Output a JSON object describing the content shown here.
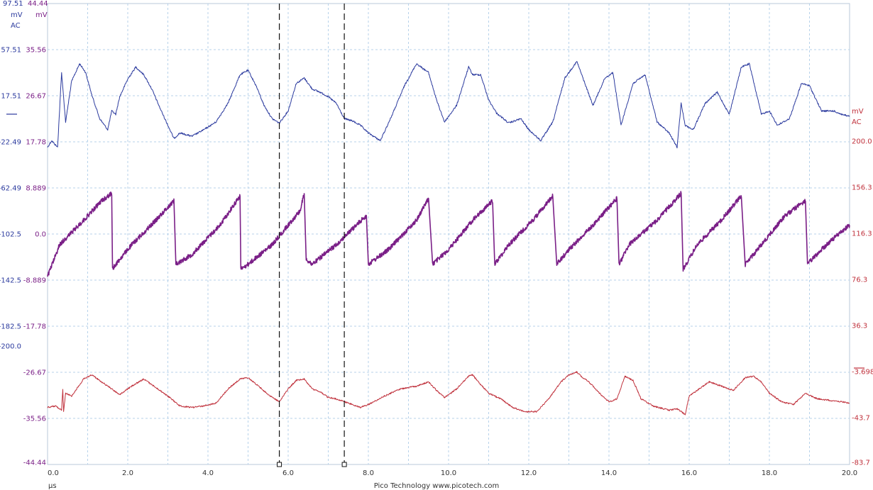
{
  "chart_data": {
    "type": "line",
    "footer": "Pico Technology   www.picotech.com",
    "x_unit": "µs",
    "xlim": [
      0,
      20
    ],
    "x_ticks": [
      "0.0",
      "2.0",
      "4.0",
      "6.0",
      "8.0",
      "10.0",
      "12.0",
      "14.0",
      "16.0",
      "18.0",
      "20.0"
    ],
    "grid": true,
    "cursors_us": [
      5.78,
      7.4
    ],
    "axes": {
      "blue": {
        "unit": "mV",
        "coupling": "AC",
        "ticks": [
          "97.51",
          "57.51",
          "17.51",
          "-22.49",
          "-62.49",
          "-102.5",
          "-142.5",
          "-182.5",
          "-200.0"
        ]
      },
      "purple": {
        "unit": "mV",
        "ticks": [
          "44.44",
          "35.56",
          "26.67",
          "17.78",
          "8.889",
          "0.0",
          "-8.889",
          "-17.78",
          "-26.67",
          "-35.56",
          "-44.44"
        ]
      },
      "red": {
        "unit": "mV",
        "coupling": "AC",
        "ticks": [
          "200.0",
          "156.3",
          "116.3",
          "76.3",
          "36.3",
          "-3.698",
          "-43.7",
          "-83.7"
        ]
      }
    },
    "series": [
      {
        "color": "#2b3a9e",
        "x": [
          0.0,
          0.1,
          0.25,
          0.35,
          0.45,
          0.6,
          0.8,
          0.95,
          1.1,
          1.3,
          1.5,
          1.6,
          1.7,
          1.8,
          2.0,
          2.2,
          2.4,
          2.6,
          2.8,
          3.0,
          3.15,
          3.3,
          3.6,
          3.9,
          4.2,
          4.5,
          4.8,
          5.0,
          5.2,
          5.4,
          5.6,
          5.78,
          6.0,
          6.2,
          6.4,
          6.6,
          6.8,
          7.0,
          7.2,
          7.4,
          7.6,
          7.8,
          8.0,
          8.3,
          8.6,
          8.9,
          9.2,
          9.5,
          9.7,
          9.9,
          10.2,
          10.5,
          10.6,
          10.8,
          11.0,
          11.2,
          11.5,
          11.8,
          12.0,
          12.3,
          12.6,
          12.9,
          13.2,
          13.3,
          13.6,
          13.9,
          14.1,
          14.3,
          14.6,
          14.9,
          15.2,
          15.5,
          15.7,
          15.8,
          15.9,
          16.1,
          16.4,
          16.7,
          17.0,
          17.3,
          17.5,
          17.8,
          18.0,
          18.2,
          18.5,
          18.8,
          19.0,
          19.3,
          19.6,
          19.8,
          20.0
        ],
        "y": [
          -28,
          -22,
          -28,
          40,
          -5,
          32,
          48,
          40,
          20,
          -2,
          -12,
          5,
          2,
          18,
          34,
          45,
          38,
          25,
          8,
          -8,
          -20,
          -15,
          -18,
          -12,
          -5,
          12,
          38,
          42,
          28,
          10,
          -2,
          -6,
          5,
          30,
          35,
          25,
          22,
          18,
          12,
          -2,
          -4,
          -8,
          -15,
          -22,
          2,
          28,
          48,
          40,
          15,
          -5,
          10,
          45,
          38,
          38,
          15,
          3,
          -6,
          -2,
          -12,
          -22,
          -5,
          35,
          50,
          40,
          10,
          35,
          40,
          -8,
          30,
          38,
          -5,
          -15,
          -28,
          12,
          -8,
          -12,
          12,
          22,
          2,
          45,
          48,
          2,
          5,
          -8,
          -2,
          30,
          28,
          5,
          5,
          2,
          0
        ]
      },
      {
        "color": "#7a1f87",
        "x": [
          0.0,
          0.3,
          0.9,
          1.35,
          1.6,
          1.62,
          1.7,
          2.1,
          2.7,
          3.15,
          3.2,
          3.6,
          4.3,
          4.8,
          4.82,
          5.0,
          5.6,
          6.3,
          6.4,
          6.45,
          6.6,
          7.2,
          7.95,
          8.0,
          8.5,
          9.2,
          9.5,
          9.6,
          10.0,
          10.6,
          11.1,
          11.15,
          11.5,
          12.1,
          12.6,
          12.7,
          13.0,
          13.6,
          14.2,
          14.25,
          14.5,
          15.2,
          15.8,
          15.85,
          16.2,
          16.8,
          17.3,
          17.4,
          17.8,
          18.4,
          18.9,
          18.95,
          19.3,
          19.7,
          20.0
        ],
        "y": [
          -8.5,
          -2,
          3,
          7,
          8.5,
          -7,
          -6,
          -2,
          3,
          7,
          -6,
          -4,
          2,
          8,
          -7,
          -6,
          -2,
          5,
          8.5,
          -5,
          -6,
          -2,
          4,
          -6,
          -3,
          3,
          7.5,
          -6,
          -3,
          3,
          7,
          -6,
          -2,
          3,
          8,
          -6,
          -3,
          2,
          7.5,
          -6,
          -2,
          3,
          8.5,
          -7,
          -2,
          3,
          8,
          -6,
          -2,
          4,
          7,
          -6,
          -3,
          0,
          2
        ]
      },
      {
        "color": "#c0323d",
        "x": [
          0.0,
          0.2,
          0.35,
          0.38,
          0.4,
          0.45,
          0.6,
          0.9,
          1.1,
          1.3,
          1.55,
          1.8,
          2.1,
          2.4,
          2.6,
          3.0,
          3.3,
          3.6,
          3.9,
          4.2,
          4.5,
          4.8,
          5.0,
          5.3,
          5.5,
          5.78,
          6.0,
          6.2,
          6.4,
          6.6,
          6.8,
          7.0,
          7.2,
          7.4,
          7.6,
          7.8,
          8.0,
          8.4,
          8.8,
          9.2,
          9.5,
          9.7,
          9.9,
          10.2,
          10.5,
          10.6,
          10.8,
          11.0,
          11.3,
          11.6,
          11.9,
          12.2,
          12.5,
          12.8,
          13.0,
          13.2,
          13.3,
          13.5,
          13.8,
          14.0,
          14.2,
          14.4,
          14.6,
          14.8,
          15.1,
          15.5,
          15.7,
          15.9,
          16.0,
          16.2,
          16.5,
          16.8,
          17.1,
          17.4,
          17.6,
          17.8,
          18.0,
          18.3,
          18.6,
          18.9,
          19.2,
          19.5,
          19.8,
          20.0
        ],
        "y": [
          -28,
          -27,
          -30,
          -15,
          -31,
          -18,
          -20,
          -8,
          -5,
          -9,
          -14,
          -19,
          -13,
          -8,
          -12,
          -20,
          -27,
          -28,
          -27,
          -25,
          -15,
          -8,
          -7,
          -14,
          -19,
          -24,
          -15,
          -9,
          -8,
          -15,
          -17,
          -21,
          -22,
          -24,
          -26,
          -28,
          -26,
          -20,
          -15,
          -13,
          -10,
          -16,
          -21,
          -15,
          -6,
          -5,
          -12,
          -18,
          -22,
          -28,
          -31,
          -31,
          -22,
          -10,
          -5,
          -3,
          -6,
          -10,
          -19,
          -24,
          -22,
          -6,
          -9,
          -22,
          -27,
          -30,
          -29,
          -33,
          -20,
          -16,
          -10,
          -13,
          -16,
          -7,
          -6,
          -10,
          -18,
          -24,
          -26,
          -18,
          -22,
          -23,
          -24,
          -25
        ]
      }
    ]
  }
}
